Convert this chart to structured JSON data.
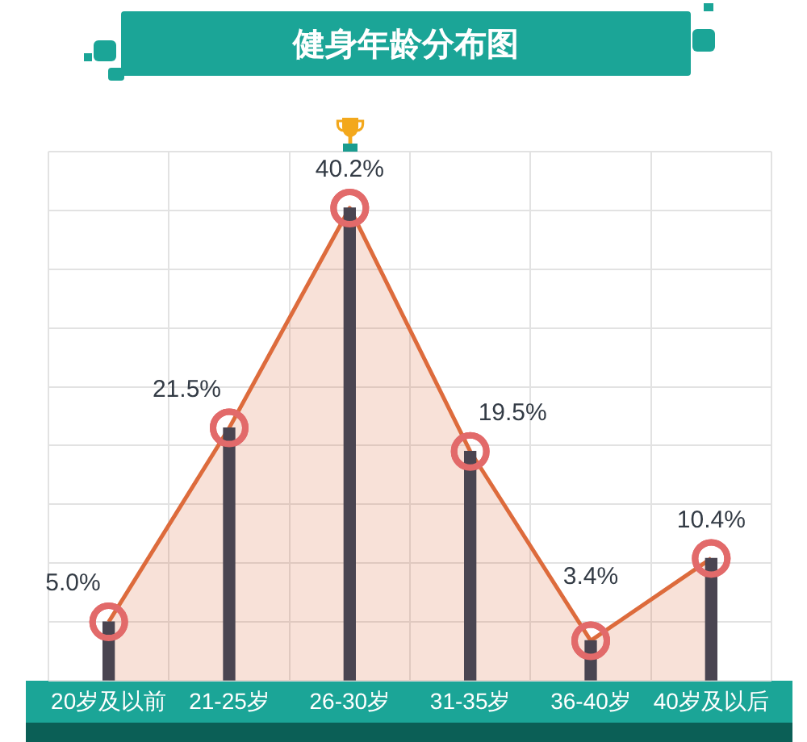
{
  "chart_data": {
    "type": "area",
    "title": "健身年龄分布图",
    "categories": [
      "20岁及以前",
      "21-25岁",
      "26-30岁",
      "31-35岁",
      "36-40岁",
      "40岁及以后"
    ],
    "series": [
      {
        "type": "bar",
        "color": "#4a4551",
        "values": [
          5.0,
          21.5,
          40.2,
          19.5,
          3.4,
          10.4
        ]
      },
      {
        "color": "#dd6b3c",
        "colors": [
          "#e26a6a",
          "#e26a6a",
          "#e26a6a",
          "#e26a6a",
          "#e26a6a",
          "#e26a6a"
        ],
        "values": [
          5.0,
          21.5,
          40.2,
          19.5,
          3.4,
          10.4
        ],
        "value_labels": [
          "5.0%",
          "21.5%",
          "40.2%",
          "19.5%",
          "3.4%",
          "10.4%"
        ]
      }
    ],
    "grid": true,
    "legend": false,
    "marker": "circle"
  }
}
